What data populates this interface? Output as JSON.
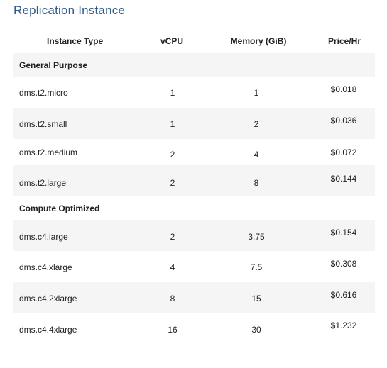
{
  "title": "Replication Instance",
  "columns": {
    "type": "Instance Type",
    "vcpu": "vCPU",
    "memory": "Memory (GiB)",
    "price": "Price/Hr"
  },
  "sections": [
    {
      "name": "General Purpose",
      "rows": [
        {
          "type": "dms.t2.micro",
          "vcpu": "1",
          "memory": "1",
          "price": "$0.018"
        },
        {
          "type": "dms.t2.small",
          "vcpu": "1",
          "memory": "2",
          "price": "$0.036"
        },
        {
          "type": "dms.t2.medium",
          "vcpu": "2",
          "memory": "4",
          "price": "$0.072"
        },
        {
          "type": "dms.t2.large",
          "vcpu": "2",
          "memory": "8",
          "price": "$0.144"
        }
      ]
    },
    {
      "name": "Compute Optimized",
      "rows": [
        {
          "type": "dms.c4.large",
          "vcpu": "2",
          "memory": "3.75",
          "price": "$0.154"
        },
        {
          "type": "dms.c4.xlarge",
          "vcpu": "4",
          "memory": "7.5",
          "price": "$0.308"
        },
        {
          "type": "dms.c4.2xlarge",
          "vcpu": "8",
          "memory": "15",
          "price": "$0.616"
        },
        {
          "type": "dms.c4.4xlarge",
          "vcpu": "16",
          "memory": "30",
          "price": "$1.232"
        }
      ]
    }
  ]
}
